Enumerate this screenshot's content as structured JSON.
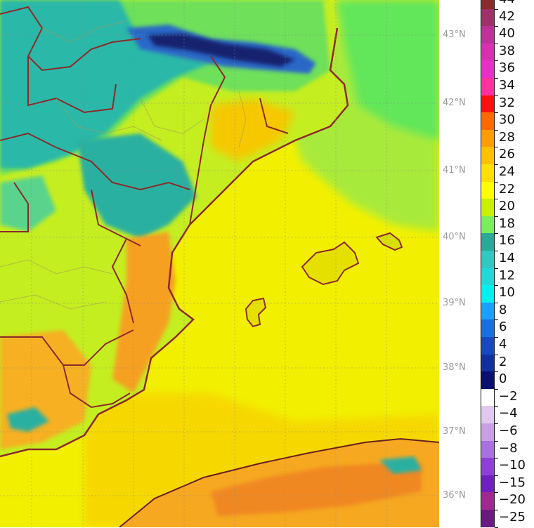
{
  "map": {
    "latitude_labels": [
      "43°N",
      "42°N",
      "41°N",
      "40°N",
      "39°N",
      "38°N",
      "37°N",
      "36°N"
    ],
    "colors": {
      "sea_warm": "#f0f000",
      "land_green": "#8ee05a",
      "land_teal": "#2bb5a6",
      "cold_blue": "#1a3aa0",
      "hot_orange": "#f5a020",
      "border": "#8b2a2a"
    }
  },
  "colorbar": {
    "labels": [
      "44",
      "42",
      "40",
      "38",
      "36",
      "34",
      "32",
      "30",
      "28",
      "26",
      "24",
      "22",
      "20",
      "18",
      "16",
      "14",
      "12",
      "10",
      "8",
      "6",
      "4",
      "2",
      "0",
      "−2",
      "−4",
      "−6",
      "−8",
      "−10",
      "−15",
      "−20",
      "−25"
    ],
    "colors": [
      "#8b2a2a",
      "#a0306a",
      "#c0309a",
      "#d830b0",
      "#e830c8",
      "#ff30a0",
      "#ff1010",
      "#ff6a00",
      "#ff9c00",
      "#ffc000",
      "#ffe000",
      "#ffff00",
      "#c8f000",
      "#7aee5a",
      "#2aa898",
      "#30c8c0",
      "#20d8d8",
      "#00f0f0",
      "#1aa0ff",
      "#1870e0",
      "#1848c0",
      "#1030a0",
      "#0a1070",
      "#ffffff",
      "#e0c8f0",
      "#c8a0e8",
      "#a870e0",
      "#9040d8",
      "#7020c0",
      "#a02890",
      "#6a1a80"
    ]
  }
}
